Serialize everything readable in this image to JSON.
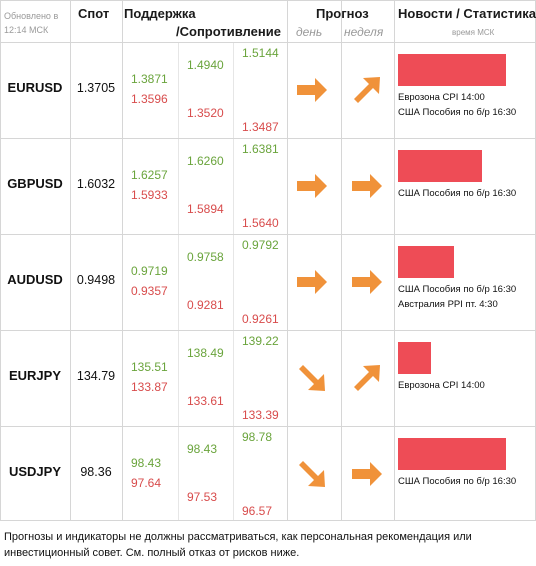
{
  "header": {
    "updated": "Обновлено в 12:14 МСК",
    "spot": "Спот",
    "support": "Поддержка",
    "resistance": "/Сопротивление",
    "forecast": "Прогноз",
    "day": "день",
    "week": "неделя",
    "news": "Новости / Статистика",
    "time_note": "время МСК"
  },
  "rows": [
    {
      "pair": "EURUSD",
      "spot": "1.3705",
      "c1": {
        "g": "1.3871",
        "r": "1.3596"
      },
      "c2": {
        "g": "1.4940",
        "r": "1.3520"
      },
      "c3": {
        "g": "1.5144",
        "r": "1.3487"
      },
      "day_dir": "right",
      "week_dir": "up-right",
      "bar_level": 1.0,
      "news": [
        "Еврозона CPI 14:00",
        "США Пособия по б/р 16:30"
      ]
    },
    {
      "pair": "GBPUSD",
      "spot": "1.6032",
      "c1": {
        "g": "1.6257",
        "r": "1.5933"
      },
      "c2": {
        "g": "1.6260",
        "r": "1.5894"
      },
      "c3": {
        "g": "1.6381",
        "r": "1.5640"
      },
      "day_dir": "right",
      "week_dir": "right",
      "bar_level": 0.78,
      "news": [
        "США Пособия по б/р 16:30"
      ]
    },
    {
      "pair": "AUDUSD",
      "spot": "0.9498",
      "c1": {
        "g": "0.9719",
        "r": "0.9357"
      },
      "c2": {
        "g": "0.9758",
        "r": "0.9281"
      },
      "c3": {
        "g": "0.9792",
        "r": "0.9261"
      },
      "day_dir": "right",
      "week_dir": "right",
      "bar_level": 0.52,
      "news": [
        "США Пособия по б/р 16:30",
        "Австралия PPI пт. 4:30"
      ]
    },
    {
      "pair": "EURJPY",
      "spot": "134.79",
      "c1": {
        "g": "135.51",
        "r": "133.87"
      },
      "c2": {
        "g": "138.49",
        "r": "133.61"
      },
      "c3": {
        "g": "139.22",
        "r": "133.39"
      },
      "day_dir": "down-right",
      "week_dir": "up-right",
      "bar_level": 0.31,
      "news": [
        "Еврозона CPI 14:00"
      ]
    },
    {
      "pair": "USDJPY",
      "spot": "98.36",
      "c1": {
        "g": "98.43",
        "r": "97.64"
      },
      "c2": {
        "g": "98.43",
        "r": "97.53"
      },
      "c3": {
        "g": "98.78",
        "r": "96.57"
      },
      "day_dir": "down-right",
      "week_dir": "right",
      "bar_level": 1.0,
      "news": [
        "США Пособия по б/р 16:30"
      ]
    }
  ],
  "footer": "Прогнозы и индикаторы не должны рассматриваться, как персональная рекомендация или инвестиционный совет. См. полный отказ от рисков ниже.",
  "colors": {
    "support_green": "#6aa43c",
    "resistance_red": "#d84c4c",
    "arrow_orange": "#f0923a",
    "bar_red": "#ee4c56"
  },
  "icons": {
    "right": "arrow-right-icon",
    "up-right": "arrow-up-right-icon",
    "down-right": "arrow-down-right-icon"
  }
}
